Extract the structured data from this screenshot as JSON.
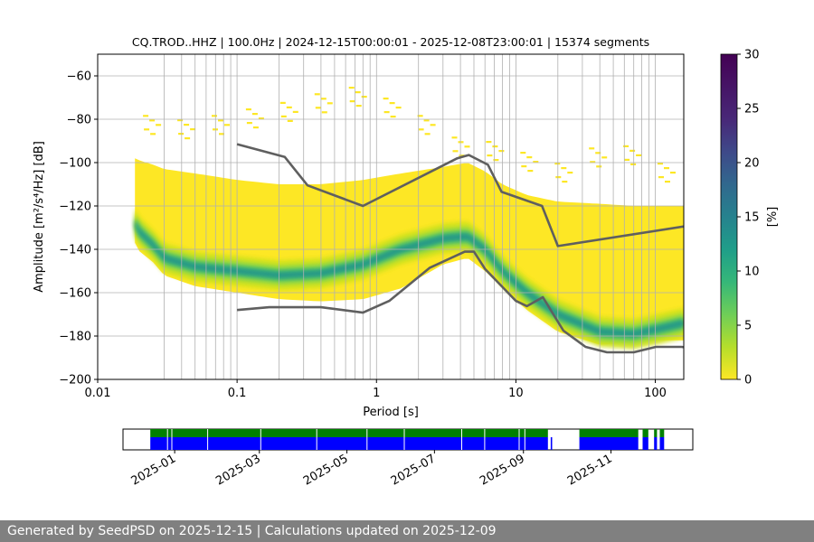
{
  "chart_data": {
    "type": "heatmap",
    "title": "CQ.TROD..HHZ | 100.0Hz | 2024-12-15T00:00:01 - 2025-12-08T23:00:01 | 15374 segments",
    "xlabel": "Period [s]",
    "ylabel": "Amplitude [m²/s⁴/Hz] [dB]",
    "x_scale": "log",
    "xlim": [
      0.01,
      160
    ],
    "ylim": [
      -200,
      -50
    ],
    "x_ticks": [
      0.01,
      0.1,
      1,
      10,
      100
    ],
    "x_tick_labels": [
      "0.01",
      "0.1",
      "1",
      "10",
      "100"
    ],
    "y_ticks": [
      -200,
      -180,
      -160,
      -140,
      -120,
      -100,
      -80,
      -60
    ],
    "y_tick_labels": [
      "−200",
      "−180",
      "−160",
      "−140",
      "−120",
      "−100",
      "−80",
      "−60"
    ],
    "grid": true,
    "colormap": "viridis",
    "colorbar": {
      "label": "[%]",
      "range": [
        0,
        30
      ],
      "ticks": [
        0,
        5,
        10,
        15,
        20,
        25,
        30
      ],
      "tick_labels": [
        "0",
        "5",
        "10",
        "15",
        "20",
        "25",
        "30"
      ]
    },
    "period_grid_lines": [
      0.03,
      0.04,
      0.05,
      0.06,
      0.07,
      0.08,
      0.09,
      0.1,
      0.2,
      0.3,
      0.4,
      0.5,
      0.6,
      0.7,
      0.8,
      0.9,
      1,
      2,
      3,
      4,
      5,
      6,
      7,
      8,
      9,
      10,
      20,
      30,
      40,
      50,
      60,
      70,
      80,
      90,
      100
    ],
    "psd_x_range": [
      0.0185,
      160
    ],
    "psd_mode": {
      "period": [
        0.0185,
        0.02,
        0.025,
        0.03,
        0.05,
        0.1,
        0.2,
        0.4,
        0.8,
        1.5,
        3,
        4.5,
        6,
        8,
        12,
        20,
        40,
        70,
        100,
        160
      ],
      "db": [
        -128,
        -132,
        -138,
        -144,
        -148,
        -150,
        -152,
        -151,
        -147,
        -140,
        -135,
        -134,
        -140,
        -150,
        -160,
        -170,
        -178,
        -179,
        -177,
        -174
      ]
    },
    "psd_upper_envelope": {
      "period": [
        0.0185,
        0.02,
        0.025,
        0.03,
        0.05,
        0.1,
        0.2,
        0.4,
        0.8,
        1.5,
        3,
        4.5,
        6,
        8,
        12,
        20,
        40,
        70,
        100,
        160
      ],
      "db": [
        -98,
        -99,
        -101,
        -103,
        -105,
        -108,
        -110,
        -110,
        -108,
        -105,
        -102,
        -100,
        -104,
        -110,
        -115,
        -118,
        -119,
        -120,
        -120,
        -120
      ]
    },
    "psd_lower_envelope": {
      "period": [
        0.0185,
        0.02,
        0.025,
        0.03,
        0.05,
        0.1,
        0.2,
        0.4,
        0.8,
        1.5,
        3,
        4.5,
        6,
        8,
        12,
        20,
        40,
        70,
        100,
        160
      ],
      "db": [
        -137,
        -141,
        -146,
        -152,
        -157,
        -160,
        -163,
        -164,
        -163,
        -158,
        -147,
        -144,
        -150,
        -158,
        -168,
        -178,
        -184,
        -183,
        -182,
        -182
      ]
    },
    "psd_sparse_outliers_top_db": [
      -78,
      -80,
      -78,
      -75,
      -72,
      -68,
      -65,
      -70,
      -78,
      -88,
      -90,
      -95,
      -100,
      -93,
      -92,
      -100
    ],
    "series": [
      {
        "name": "",
        "style": "nhnm",
        "color": "#5f5f5f",
        "period": [
          0.1,
          0.22,
          0.32,
          0.8,
          3.8,
          4.6,
          6.3,
          7.9,
          15.4,
          20,
          354.8
        ],
        "db": [
          -91.5,
          -97.4,
          -110.5,
          -120,
          -98,
          -96.5,
          -101,
          -113.5,
          -120,
          -138.5,
          -126
        ]
      },
      {
        "name": "",
        "style": "nlnm",
        "color": "#5f5f5f",
        "period": [
          0.1,
          0.17,
          0.4,
          0.8,
          1.24,
          2.4,
          4.3,
          5.0,
          6.0,
          10.0,
          12.0,
          15.6,
          21.9,
          31.6,
          45,
          70,
          101,
          154,
          328
        ],
        "db": [
          -168,
          -166.7,
          -166.7,
          -169.2,
          -163.7,
          -148.6,
          -141.1,
          -141.1,
          -149,
          -163.8,
          -166.2,
          -162.1,
          -177.5,
          -185,
          -187.5,
          -187.5,
          -185,
          -185,
          -187.5
        ]
      }
    ]
  },
  "availability": {
    "date_ticks": [
      "2025-01",
      "2025-03",
      "2025-05",
      "2025-07",
      "2025-09",
      "2025-11"
    ],
    "date_range": [
      "2024-11-26",
      "2025-12-28"
    ],
    "top_bar_color": "#008000",
    "bottom_bar_color": "#0000ff",
    "top_segments": [
      [
        "2024-12-15",
        "2025-09-18"
      ],
      [
        "2025-10-10",
        "2025-11-20"
      ],
      [
        "2025-11-23",
        "2025-11-27"
      ],
      [
        "2025-12-01",
        "2025-12-03"
      ],
      [
        "2025-12-05",
        "2025-12-08"
      ]
    ],
    "bottom_segments": [
      [
        "2024-12-15",
        "2025-09-18"
      ],
      [
        "2025-09-20",
        "2025-09-21"
      ],
      [
        "2025-10-10",
        "2025-11-20"
      ],
      [
        "2025-11-23",
        "2025-11-27"
      ],
      [
        "2025-12-01",
        "2025-12-03"
      ],
      [
        "2025-12-05",
        "2025-12-08"
      ]
    ],
    "gap_days": [
      "2024-12-27",
      "2024-12-30",
      "2025-01-24",
      "2025-03-02",
      "2025-04-10",
      "2025-05-15",
      "2025-06-10",
      "2025-07-20",
      "2025-08-05",
      "2025-08-29",
      "2025-09-02"
    ]
  },
  "footer": {
    "text": "Generated by SeedPSD on 2025-12-15 | Calculations updated on 2025-12-09"
  }
}
